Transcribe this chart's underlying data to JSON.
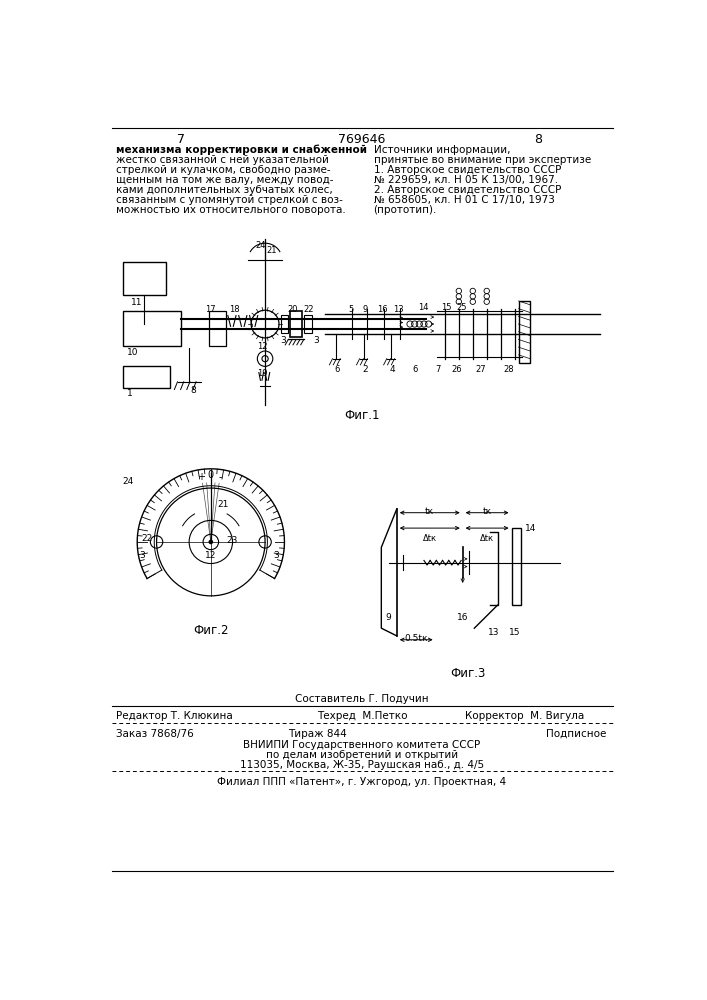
{
  "page_width": 7.07,
  "page_height": 10.0,
  "bg_color": "#ffffff",
  "page_num_left": "7",
  "page_num_center": "769646",
  "page_num_right": "8",
  "left_text_lines": [
    "механизма корректировки и снабженной",
    "жестко связанной с ней указательной",
    "стрелкой и кулачком, свободно разме-",
    "щенным на том же валу, между повод-",
    "ками дополнительных зубчатых колес,",
    "связанным с упомянутой стрелкой с воз-",
    "можностью их относительного поворота."
  ],
  "right_text_lines": [
    "Источники информации,",
    "принятые во внимание при экспертизе",
    "1. Авторское свидетельство СССР",
    "№ 229659, кл. Н 05 К 13/00, 1967.",
    "2. Авторское свидетельство СССР",
    "№ 658605, кл. Н 01 С 17/10, 1973",
    "(прототип)."
  ],
  "fig1_caption": "Фиг.1",
  "fig2_caption": "Фиг.2",
  "fig3_caption": "Фиг.3",
  "footer_sestavitel": "Составитель Г. Подучин",
  "footer_editor": "Редактор Т. Клюкина",
  "footer_tehred": "Техред  М.Петко",
  "footer_korrektor": "Корректор  М. Вигула",
  "footer_zakaz": "Заказ 7868/76",
  "footer_tirazh": "Тираж 844",
  "footer_podpisnoe": "Подписное",
  "footer_vniipи": "ВНИИПИ Государственного комитета СССР",
  "footer_podel": "по делам изобретений и открытий",
  "footer_addr": "113035, Москва, Ж-35, Раушская наб., д. 4/5",
  "footer_filial": "Филиал ППП «Патент», г. Ужгород, ул. Проектная, 4"
}
